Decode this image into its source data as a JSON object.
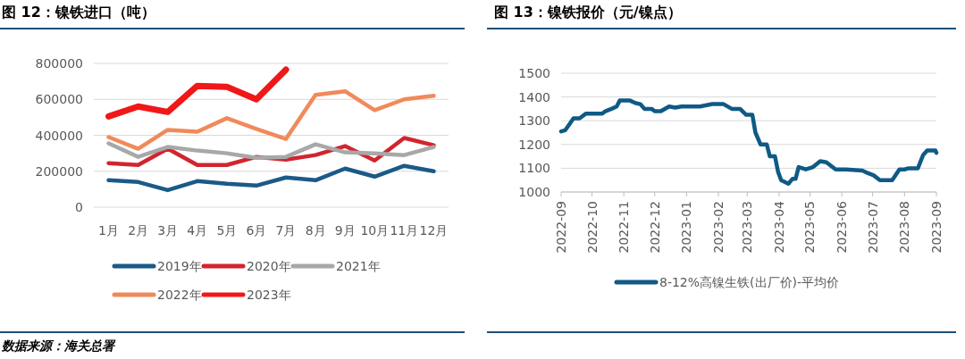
{
  "chart_data": [
    {
      "type": "line",
      "title": "图 12：镍铁进口（吨）",
      "categories": [
        "1月",
        "2月",
        "3月",
        "4月",
        "5月",
        "6月",
        "7月",
        "8月",
        "9月",
        "10月",
        "11月",
        "12月"
      ],
      "series": [
        {
          "name": "2019年",
          "color": "#1a5a87",
          "values": [
            150000,
            140000,
            95000,
            145000,
            130000,
            120000,
            165000,
            150000,
            215000,
            170000,
            230000,
            200000
          ]
        },
        {
          "name": "2020年",
          "color": "#d1252f",
          "values": [
            245000,
            235000,
            325000,
            235000,
            235000,
            280000,
            265000,
            290000,
            340000,
            260000,
            385000,
            345000
          ]
        },
        {
          "name": "2021年",
          "color": "#a8a8a8",
          "values": [
            355000,
            280000,
            335000,
            315000,
            300000,
            275000,
            280000,
            350000,
            305000,
            300000,
            290000,
            335000
          ]
        },
        {
          "name": "2022年",
          "color": "#f08a5a",
          "values": [
            390000,
            325000,
            430000,
            420000,
            495000,
            435000,
            380000,
            625000,
            645000,
            540000,
            600000,
            620000
          ]
        },
        {
          "name": "2023年",
          "color": "#f01818",
          "values": [
            505000,
            560000,
            530000,
            675000,
            670000,
            600000,
            765000,
            null,
            null,
            null,
            null,
            null
          ]
        }
      ],
      "ylim": [
        0,
        800000
      ],
      "yticks": [
        0,
        200000,
        400000,
        600000,
        800000
      ],
      "grid": "y",
      "legend": "bottom",
      "annotations": [
        "数据来源：海关总署"
      ]
    },
    {
      "type": "line",
      "title": "图 13：镍铁报价（元/镍点）",
      "series": [
        {
          "name": "8-12%高镍生铁(出厂价)-平均价",
          "color": "#0f5a85",
          "x": [
            "2022-09-01",
            "2022-09-05",
            "2022-09-09",
            "2022-09-13",
            "2022-09-19",
            "2022-09-25",
            "2022-10-11",
            "2022-10-14",
            "2022-10-20",
            "2022-10-25",
            "2022-10-28",
            "2022-11-07",
            "2022-11-12",
            "2022-11-17",
            "2022-11-21",
            "2022-11-28",
            "2022-12-01",
            "2022-12-07",
            "2022-12-15",
            "2022-12-21",
            "2022-12-27",
            "2023-01-14",
            "2023-01-26",
            "2023-02-06",
            "2023-02-14",
            "2023-02-22",
            "2023-02-28",
            "2023-03-06",
            "2023-03-09",
            "2023-03-14",
            "2023-03-20",
            "2023-03-23",
            "2023-03-28",
            "2023-03-31",
            "2023-04-03",
            "2023-04-10",
            "2023-04-14",
            "2023-04-17",
            "2023-04-20",
            "2023-04-27",
            "2023-05-04",
            "2023-05-11",
            "2023-05-17",
            "2023-05-26",
            "2023-06-05",
            "2023-06-21",
            "2023-06-26",
            "2023-07-02",
            "2023-07-08",
            "2023-07-20",
            "2023-07-27",
            "2023-08-01",
            "2023-08-05",
            "2023-08-14",
            "2023-08-19",
            "2023-08-23",
            "2023-08-31",
            "2023-09-01"
          ],
          "values": [
            1255,
            1260,
            1285,
            1310,
            1310,
            1330,
            1330,
            1340,
            1350,
            1360,
            1385,
            1385,
            1375,
            1370,
            1350,
            1350,
            1340,
            1340,
            1360,
            1355,
            1360,
            1360,
            1370,
            1370,
            1350,
            1350,
            1325,
            1325,
            1250,
            1200,
            1200,
            1150,
            1150,
            1085,
            1050,
            1035,
            1055,
            1055,
            1105,
            1095,
            1105,
            1130,
            1125,
            1095,
            1095,
            1090,
            1080,
            1070,
            1050,
            1050,
            1095,
            1095,
            1100,
            1100,
            1155,
            1175,
            1175,
            1165
          ]
        }
      ],
      "xlim": [
        "2022-09",
        "2023-09"
      ],
      "xticks": [
        "2022-09",
        "2022-10",
        "2022-11",
        "2022-12",
        "2023-01",
        "2023-02",
        "2023-03",
        "2023-04",
        "2023-05",
        "2023-06",
        "2023-07",
        "2023-08",
        "2023-09"
      ],
      "ylim": [
        1000,
        1500
      ],
      "yticks": [
        1000,
        1100,
        1200,
        1300,
        1400,
        1500
      ],
      "grid": "y",
      "legend": "bottom"
    }
  ]
}
